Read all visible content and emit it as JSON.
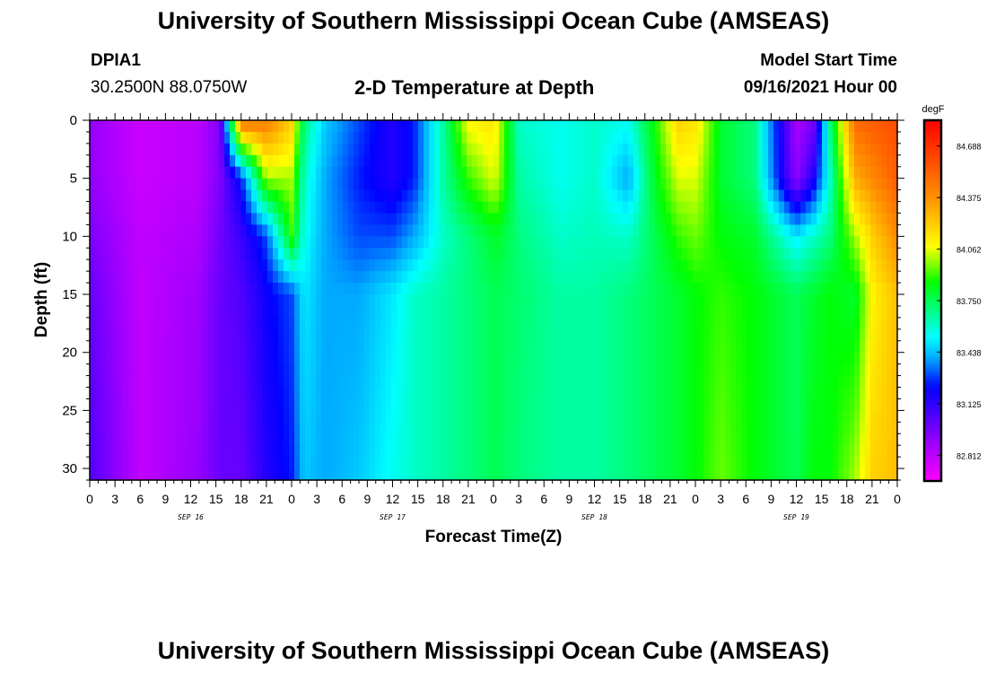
{
  "header": {
    "title": "University of Southern Mississippi Ocean Cube (AMSEAS)",
    "station": "DPIA1",
    "coords": "30.2500N  88.0750W",
    "subtitle": "2-D Temperature at Depth",
    "start_label": "Model Start Time",
    "start_value": "09/16/2021 Hour 00"
  },
  "footer": {
    "title": "University of Southern Mississippi Ocean Cube (AMSEAS)"
  },
  "chart_data": {
    "type": "heatmap",
    "title": "2-D Temperature at Depth",
    "xlabel": "Forecast Time(Z)",
    "ylabel": "Depth (ft)",
    "x_ticks": [
      "0",
      "3",
      "6",
      "9",
      "12",
      "15",
      "18",
      "21",
      "0",
      "3",
      "6",
      "9",
      "12",
      "15",
      "18",
      "21",
      "0",
      "3",
      "6",
      "9",
      "12",
      "15",
      "18",
      "21",
      "0",
      "3",
      "6",
      "9",
      "12",
      "15",
      "18",
      "21",
      "0"
    ],
    "date_labels": [
      {
        "label": "SEP 16",
        "hour": 12
      },
      {
        "label": "SEP 17",
        "hour": 36
      },
      {
        "label": "SEP 18",
        "hour": 60
      },
      {
        "label": "SEP 19",
        "hour": 84
      }
    ],
    "xlim": [
      0,
      96
    ],
    "ylim": [
      0,
      31
    ],
    "y_ticks": [
      0,
      5,
      10,
      15,
      20,
      25,
      30
    ],
    "colorbar": {
      "unit": "degF",
      "ticks": [
        "84.688",
        "84.375",
        "84.062",
        "83.750",
        "83.438",
        "83.125",
        "82.812"
      ],
      "range": [
        82.656,
        84.844
      ]
    },
    "profile_hours": [
      0,
      6,
      13,
      15.5,
      18,
      21,
      24,
      25.5,
      28,
      32,
      36,
      38.5,
      42,
      45,
      48,
      48.6,
      51,
      56,
      60,
      64,
      67,
      70,
      72,
      75,
      79,
      84,
      86,
      88,
      91,
      93,
      96
    ],
    "profile_depths": [
      0,
      5,
      10,
      15,
      31
    ],
    "profiles": [
      [
        82.9,
        82.9,
        82.95,
        83.0,
        83.05
      ],
      [
        82.78,
        82.78,
        82.8,
        82.8,
        82.8
      ],
      [
        82.82,
        82.82,
        82.85,
        82.88,
        82.9
      ],
      [
        82.95,
        82.95,
        82.98,
        83.0,
        83.0
      ],
      [
        84.5,
        83.25,
        83.1,
        83.05,
        83.0
      ],
      [
        84.45,
        84.0,
        83.3,
        83.2,
        83.15
      ],
      [
        84.2,
        84.0,
        83.9,
        83.3,
        83.25
      ],
      [
        83.7,
        83.6,
        83.55,
        83.5,
        83.45
      ],
      [
        83.45,
        83.4,
        83.4,
        83.4,
        83.4
      ],
      [
        83.3,
        83.25,
        83.3,
        83.4,
        83.45
      ],
      [
        83.15,
        83.15,
        83.3,
        83.5,
        83.55
      ],
      [
        83.25,
        83.25,
        83.4,
        83.6,
        83.6
      ],
      [
        83.65,
        83.65,
        83.6,
        83.65,
        83.65
      ],
      [
        84.1,
        83.9,
        83.7,
        83.7,
        83.7
      ],
      [
        84.15,
        84.05,
        83.8,
        83.75,
        83.75
      ],
      [
        84.05,
        84.0,
        83.8,
        83.75,
        83.75
      ],
      [
        83.6,
        83.65,
        83.7,
        83.72,
        83.7
      ],
      [
        83.55,
        83.55,
        83.6,
        83.65,
        83.65
      ],
      [
        83.6,
        83.6,
        83.62,
        83.65,
        83.65
      ],
      [
        83.55,
        83.4,
        83.6,
        83.7,
        83.7
      ],
      [
        83.85,
        83.8,
        83.75,
        83.75,
        83.75
      ],
      [
        84.2,
        84.05,
        83.9,
        83.8,
        83.8
      ],
      [
        84.15,
        84.05,
        83.95,
        83.85,
        83.85
      ],
      [
        83.8,
        83.8,
        83.85,
        83.9,
        83.95
      ],
      [
        83.7,
        83.7,
        83.8,
        83.85,
        83.85
      ],
      [
        82.85,
        82.9,
        83.5,
        83.75,
        83.75
      ],
      [
        82.95,
        83.15,
        83.6,
        83.8,
        83.85
      ],
      [
        83.7,
        83.6,
        83.7,
        83.85,
        83.85
      ],
      [
        84.5,
        84.3,
        84.0,
        83.8,
        84.0
      ],
      [
        84.55,
        84.4,
        84.2,
        84.1,
        84.2
      ],
      [
        84.6,
        84.55,
        84.4,
        84.25,
        84.25
      ]
    ]
  }
}
